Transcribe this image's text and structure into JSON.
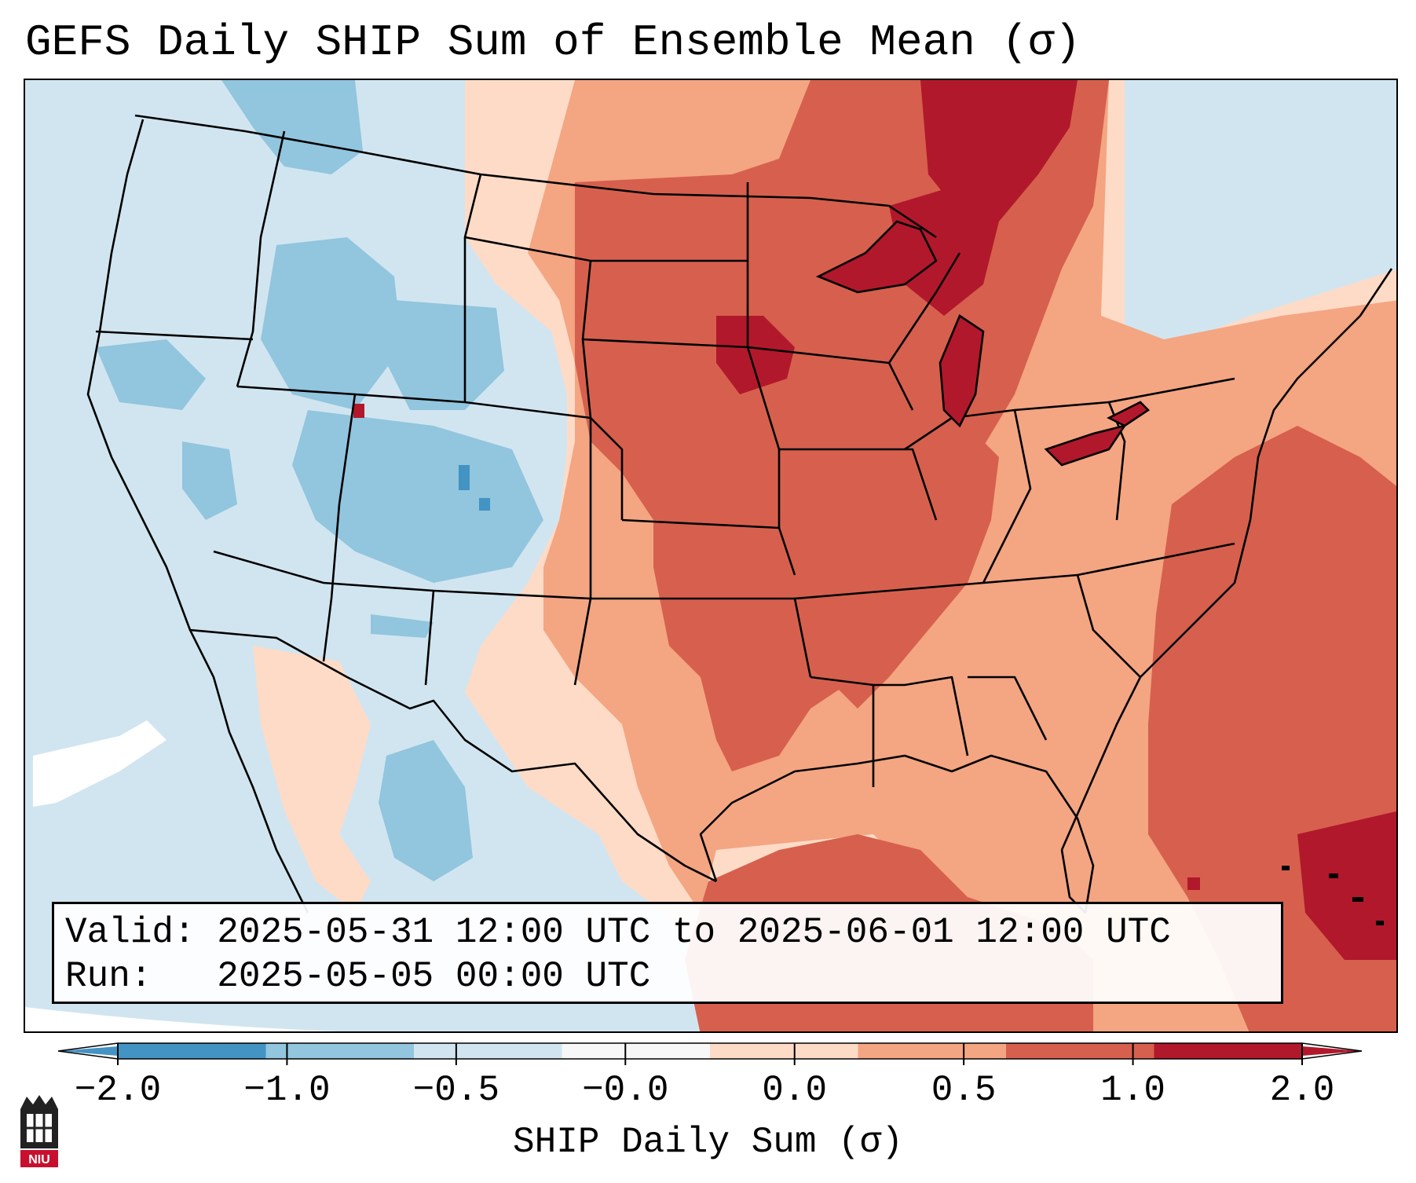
{
  "title": "GEFS Daily SHIP Sum of Ensemble Mean (σ)",
  "info": {
    "valid_line": "Valid: 2025-05-31 12:00 UTC to 2025-06-01 12:00 UTC",
    "run_line": "Run:   2025-05-05 00:00 UTC"
  },
  "colorbar": {
    "label": "SHIP Daily Sum (σ)",
    "ticks": [
      "−2.0",
      "−1.0",
      "−0.5",
      "−0.0",
      "0.0",
      "0.5",
      "1.0",
      "2.0"
    ],
    "colors": [
      "#4393c3",
      "#92c5de",
      "#d1e5f0",
      "#f7f7f7",
      "#fddbc7",
      "#f4a582",
      "#d6604d",
      "#b2182b"
    ],
    "extend": "both"
  },
  "map": {
    "domain": "Continental United States",
    "projection": "Lambert Conformal",
    "dominant_regions": {
      "west": "slightly negative (light blue)",
      "central_plains_midwest_great_lakes": "positive (red)",
      "gulf_atlantic_ocean": "positive (red)"
    }
  },
  "logo": {
    "text": "NIU"
  }
}
